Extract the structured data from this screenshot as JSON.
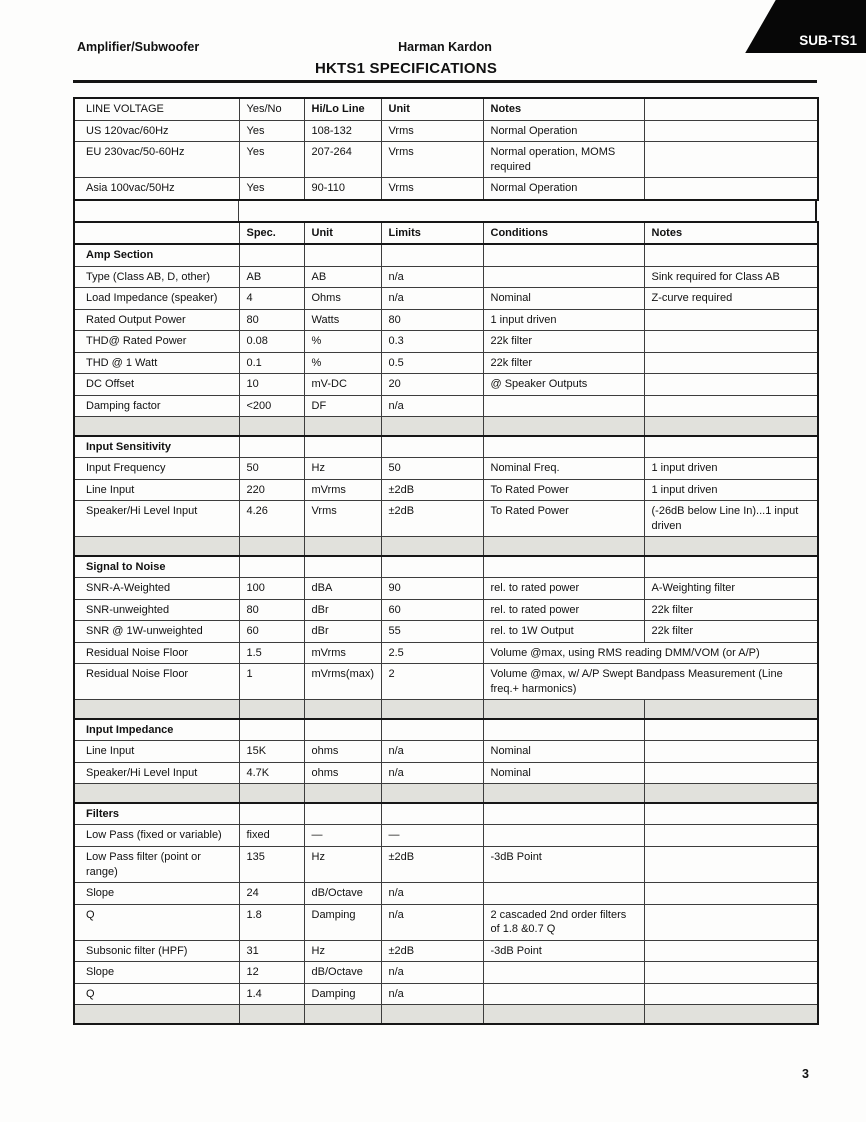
{
  "page": {
    "corner_tab_label": "SUB-TS1",
    "header_left": "Amplifier/Subwoofer",
    "header_center": "Harman Kardon",
    "title": "HKTS1 SPECIFICATIONS",
    "page_number": "3"
  },
  "colors": {
    "spacer_gray": "#e1e1dc",
    "tab_black": "#070707",
    "border_dark": "#161616"
  },
  "line_voltage_table": {
    "header": [
      {
        "label": "LINE VOLTAGE",
        "bold": false
      },
      {
        "label": "Yes/No",
        "bold": false
      },
      {
        "label": "Hi/Lo Line",
        "bold": true
      },
      {
        "label": "Unit",
        "bold": true
      },
      {
        "label": "Notes",
        "bold": true
      },
      {
        "label": "",
        "bold": false
      }
    ],
    "rows": [
      [
        "US 120vac/60Hz",
        "Yes",
        "108-132",
        "Vrms",
        "Normal Operation",
        ""
      ],
      [
        "EU 230vac/50-60Hz",
        "Yes",
        "207-264",
        "Vrms",
        "Normal operation, MOMS required",
        ""
      ],
      [
        "Asia 100vac/50Hz",
        "Yes",
        "90-110",
        "Vrms",
        "Normal Operation",
        ""
      ]
    ]
  },
  "spec_table": {
    "header": [
      "",
      "Spec.",
      "Unit",
      "Limits",
      "Conditions",
      "Notes"
    ],
    "rows": [
      {
        "type": "section",
        "label": "Amp Section"
      },
      {
        "type": "data",
        "cells": [
          "Type (Class AB, D, other)",
          "AB",
          "AB",
          "n/a",
          "",
          "Sink required for Class AB"
        ]
      },
      {
        "type": "data",
        "cells": [
          "Load Impedance (speaker)",
          "4",
          "Ohms",
          "n/a",
          "Nominal",
          "Z-curve required"
        ]
      },
      {
        "type": "data",
        "cells": [
          "Rated Output Power",
          "80",
          "Watts",
          "80",
          "1 input driven",
          ""
        ]
      },
      {
        "type": "data",
        "cells": [
          "THD@ Rated Power",
          "0.08",
          "%",
          "0.3",
          "22k filter",
          ""
        ]
      },
      {
        "type": "data",
        "cells": [
          "THD @ 1 Watt",
          "0.1",
          "%",
          "0.5",
          "22k filter",
          ""
        ]
      },
      {
        "type": "data",
        "cells": [
          "DC Offset",
          "10",
          "mV-DC",
          "20",
          "@ Speaker Outputs",
          ""
        ]
      },
      {
        "type": "data",
        "cells": [
          "Damping factor",
          "<200",
          "DF",
          "n/a",
          "",
          ""
        ]
      },
      {
        "type": "spacer"
      },
      {
        "type": "section",
        "label": "Input Sensitivity"
      },
      {
        "type": "data",
        "cells": [
          "Input Frequency",
          "50",
          "Hz",
          "50",
          "Nominal Freq.",
          "1 input driven"
        ]
      },
      {
        "type": "data",
        "cells": [
          "Line Input",
          "220",
          "mVrms",
          "±2dB",
          "To Rated Power",
          "1 input driven"
        ]
      },
      {
        "type": "data",
        "cells": [
          "Speaker/Hi Level Input",
          "4.26",
          "Vrms",
          "±2dB",
          "To Rated Power",
          "(-26dB below Line In)...1 input driven"
        ]
      },
      {
        "type": "spacer"
      },
      {
        "type": "section",
        "label": "Signal to Noise"
      },
      {
        "type": "data",
        "cells": [
          "SNR-A-Weighted",
          "100",
          "dBA",
          "90",
          "rel. to rated power",
          "A-Weighting filter"
        ]
      },
      {
        "type": "data",
        "cells": [
          "SNR-unweighted",
          "80",
          "dBr",
          "60",
          "rel. to rated power",
          "22k filter"
        ]
      },
      {
        "type": "data",
        "cells": [
          "SNR @ 1W-unweighted",
          "60",
          "dBr",
          "55",
          "rel. to 1W Output",
          "22k filter"
        ]
      },
      {
        "type": "span",
        "cells": [
          "Residual Noise Floor",
          "1.5",
          "mVrms",
          "2.5",
          "Volume @max, using RMS reading DMM/VOM (or A/P)"
        ]
      },
      {
        "type": "span",
        "cells": [
          "Residual Noise Floor",
          "1",
          "mVrms(max)",
          "2",
          "Volume @max, w/ A/P Swept Bandpass Measurement (Line freq.+ harmonics)"
        ]
      },
      {
        "type": "spacer"
      },
      {
        "type": "section",
        "label": "Input Impedance"
      },
      {
        "type": "data",
        "cells": [
          "Line Input",
          "15K",
          "ohms",
          "n/a",
          "Nominal",
          ""
        ]
      },
      {
        "type": "data",
        "cells": [
          "Speaker/Hi Level Input",
          "4.7K",
          "ohms",
          "n/a",
          "Nominal",
          ""
        ]
      },
      {
        "type": "spacer"
      },
      {
        "type": "section",
        "label": "Filters"
      },
      {
        "type": "data",
        "cells": [
          "Low Pass (fixed or variable)",
          "fixed",
          "—",
          "—",
          "",
          ""
        ]
      },
      {
        "type": "data",
        "cells": [
          "Low Pass filter (point or range)",
          "135",
          "Hz",
          "±2dB",
          "-3dB Point",
          ""
        ]
      },
      {
        "type": "data",
        "cells": [
          "Slope",
          "24",
          "dB/Octave",
          "n/a",
          "",
          ""
        ]
      },
      {
        "type": "data",
        "cells": [
          "Q",
          "1.8",
          "Damping",
          "n/a",
          "2 cascaded 2nd order filters of 1.8 &0.7 Q",
          ""
        ]
      },
      {
        "type": "data",
        "cells": [
          "Subsonic filter (HPF)",
          "31",
          "Hz",
          "±2dB",
          "-3dB Point",
          ""
        ]
      },
      {
        "type": "data",
        "cells": [
          "Slope",
          "12",
          "dB/Octave",
          "n/a",
          "",
          ""
        ]
      },
      {
        "type": "data",
        "cells": [
          "Q",
          "1.4",
          "Damping",
          "n/a",
          "",
          ""
        ]
      },
      {
        "type": "spacer"
      }
    ]
  }
}
